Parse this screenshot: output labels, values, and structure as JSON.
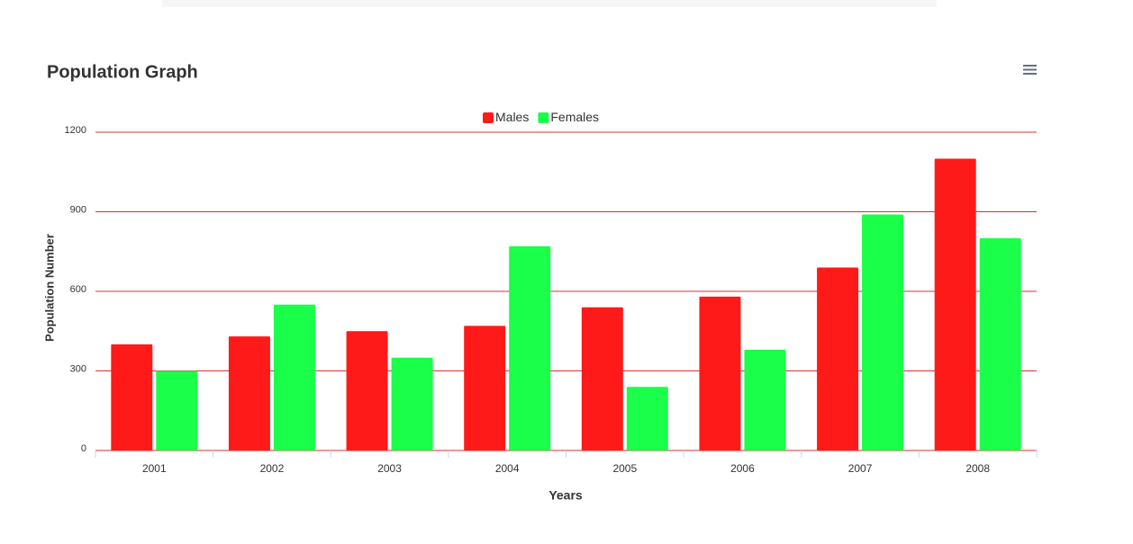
{
  "chart_data": {
    "type": "bar",
    "title": "Population Graph",
    "categories": [
      "2001",
      "2002",
      "2003",
      "2004",
      "2005",
      "2006",
      "2007",
      "2008"
    ],
    "series": [
      {
        "name": "Males",
        "color": "#ff1a1a",
        "values": [
          400,
          430,
          450,
          470,
          540,
          580,
          690,
          1100
        ]
      },
      {
        "name": "Females",
        "color": "#1aff4a",
        "values": [
          300,
          550,
          350,
          770,
          240,
          380,
          890,
          800
        ]
      }
    ],
    "x_label": "Years",
    "y_label": "Population Number",
    "ylim": [
      0,
      1200
    ],
    "yticks": [
      0,
      300,
      600,
      900,
      1200
    ],
    "grid": true,
    "legend": "top"
  }
}
